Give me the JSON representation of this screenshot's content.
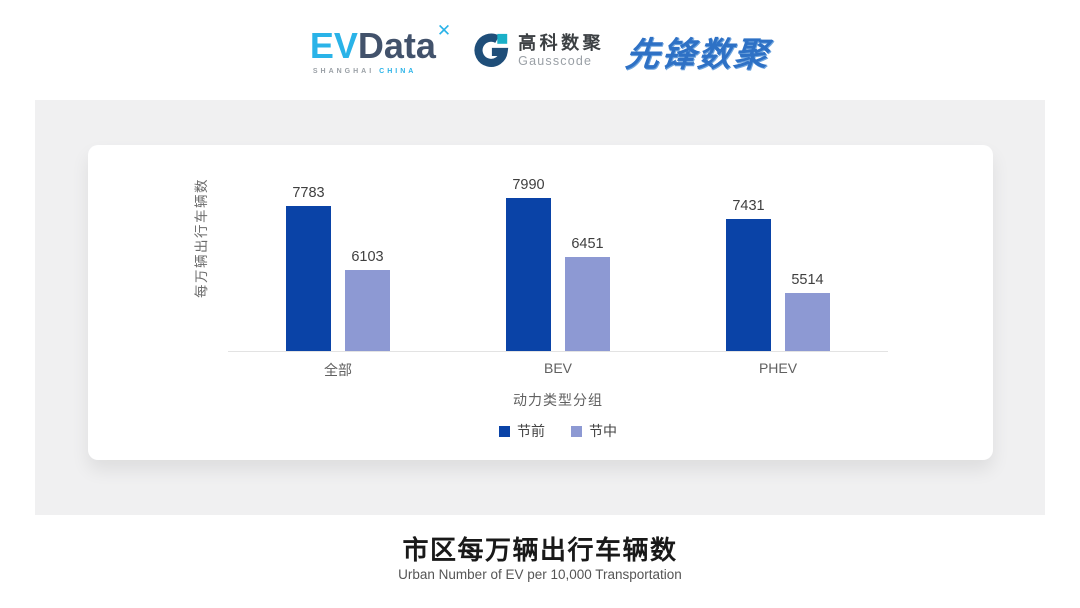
{
  "header": {
    "evdata": {
      "part1": "EV",
      "part2": "Data",
      "mark": "✕",
      "tagline_1": "SHANGHAI",
      "tagline_2": "CHINA"
    },
    "gausscode": {
      "cn": "高科数聚",
      "en": "Gausscode"
    },
    "pioneer": {
      "text": "先锋数聚"
    }
  },
  "chart_data": {
    "type": "bar",
    "categories": [
      "全部",
      "BEV",
      "PHEV"
    ],
    "series": [
      {
        "name": "节前",
        "color": "#0a43a7",
        "values": [
          7783,
          7990,
          7431
        ]
      },
      {
        "name": "节中",
        "color": "#8d99d3",
        "values": [
          6103,
          6451,
          5514
        ]
      }
    ],
    "xlabel": "动力类型分组",
    "ylabel": "每万辆出行车辆数",
    "ylim": [
      4000,
      8300
    ],
    "grid": false,
    "legend_position": "bottom",
    "bar_value_labels": true
  },
  "footer": {
    "title": "市区每万辆出行车辆数",
    "subtitle": "Urban Number of EV per 10,000 Transportation"
  },
  "colors": {
    "panel_bg": "#f0f0f1",
    "card_bg": "#ffffff",
    "axis_line": "#e3e3e3",
    "series_dark": "#0a43a7",
    "series_light": "#8d99d3",
    "evdata_blue": "#2ab3e8",
    "evdata_dark": "#42526b",
    "gauss_dark": "#1f4e79",
    "gauss_teal": "#1ab0c8",
    "pioneer_blue": "#2e71c5"
  }
}
